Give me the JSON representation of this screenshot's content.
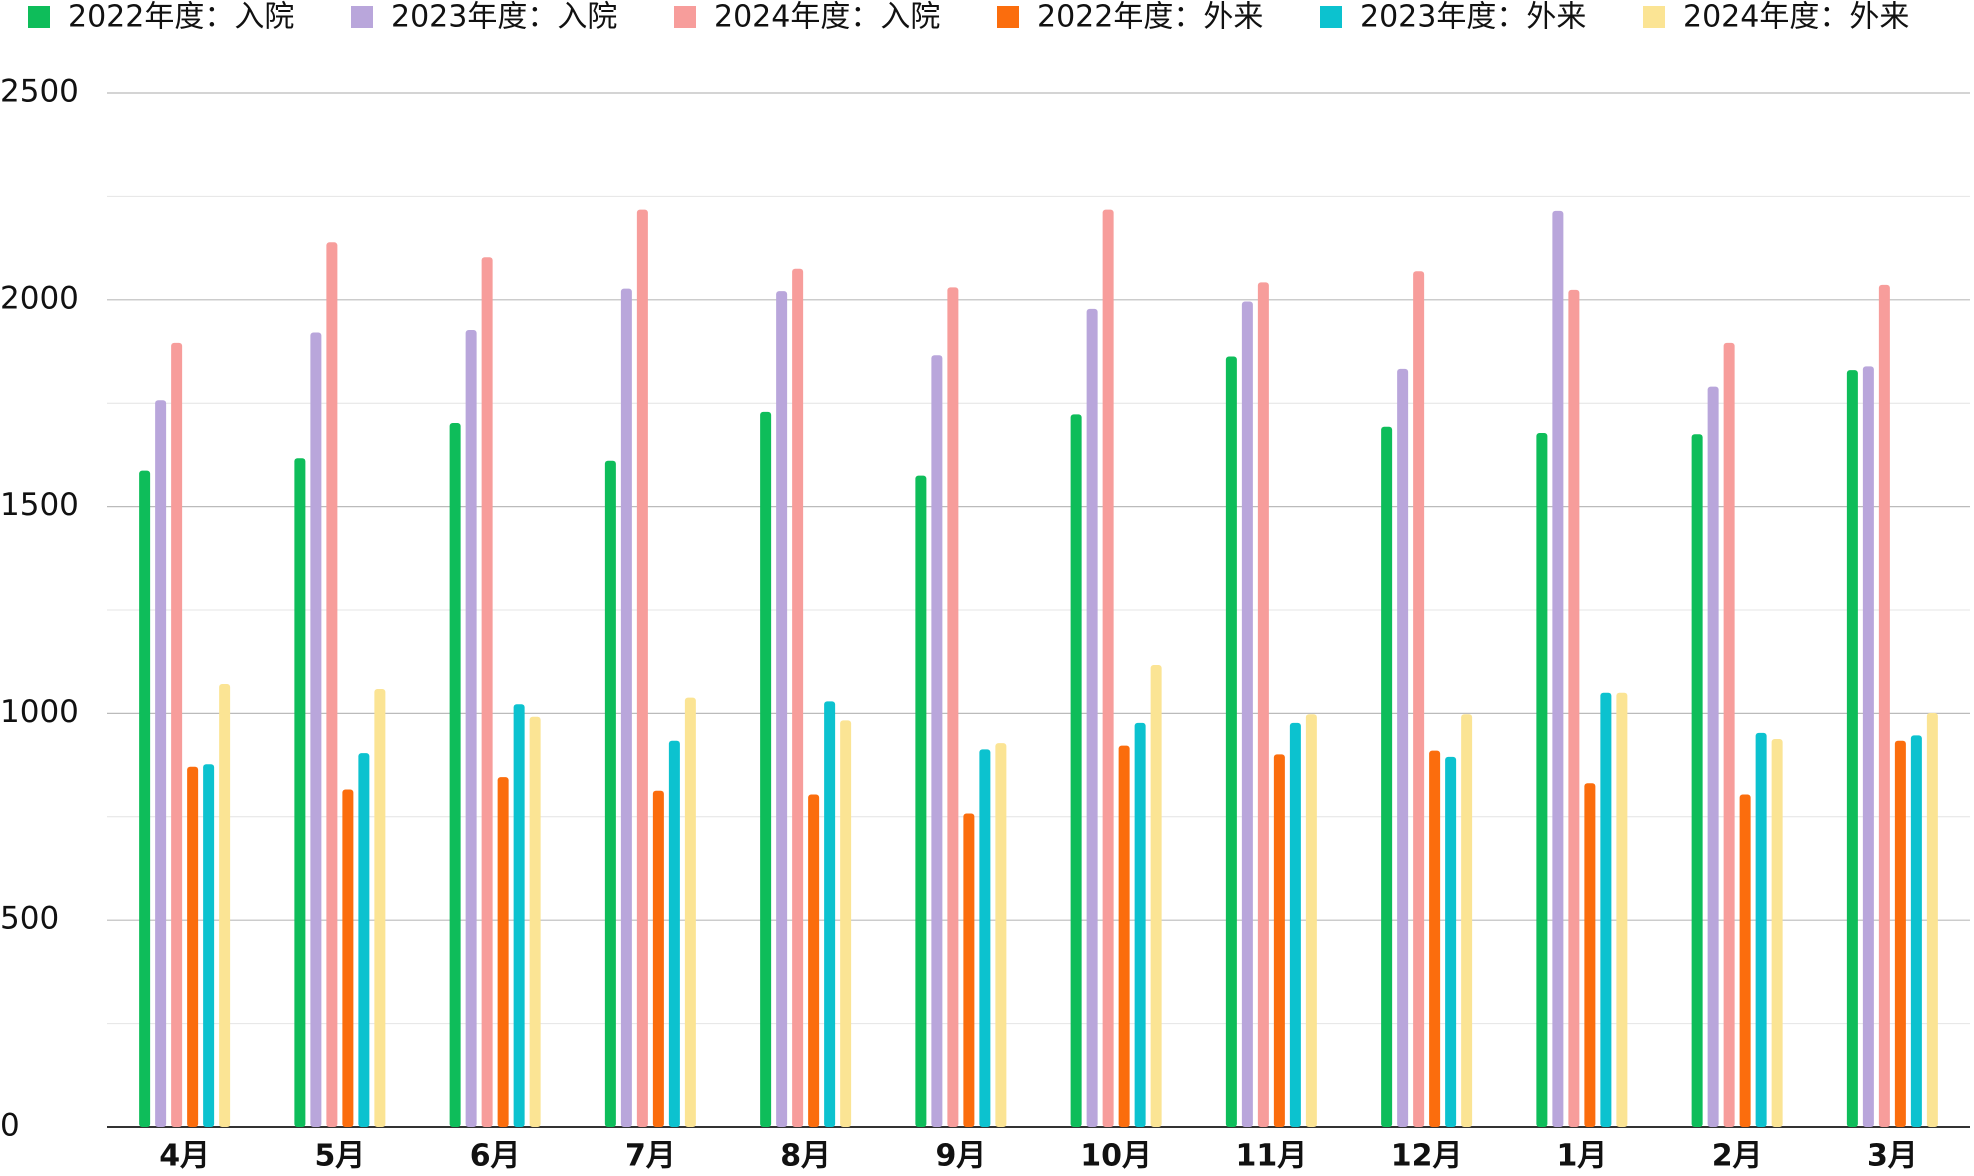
{
  "chart_data": {
    "type": "bar",
    "categories": [
      "4月",
      "5月",
      "6月",
      "7月",
      "8月",
      "9月",
      "10月",
      "11月",
      "12月",
      "1月",
      "2月",
      "3月"
    ],
    "series": [
      {
        "name": "2022年度：入院",
        "color": "#0ebd5a",
        "values": [
          1587,
          1617,
          1702,
          1611,
          1729,
          1575,
          1723,
          1863,
          1693,
          1678,
          1675,
          1830
        ]
      },
      {
        "name": "2023年度：入院",
        "color": "#b9a6db",
        "values": [
          1757,
          1921,
          1927,
          2027,
          2021,
          1866,
          1978,
          1996,
          1833,
          2215,
          1790,
          1839
        ]
      },
      {
        "name": "2024年度：入院",
        "color": "#f79d9b",
        "values": [
          1896,
          2139,
          2103,
          2218,
          2075,
          2030,
          2218,
          2042,
          2069,
          2024,
          1896,
          2036
        ]
      },
      {
        "name": "2022年度：外来",
        "color": "#fb6d0d",
        "values": [
          871,
          816,
          846,
          813,
          804,
          758,
          922,
          901,
          910,
          831,
          804,
          934
        ]
      },
      {
        "name": "2023年度：外来",
        "color": "#0cc2cf",
        "values": [
          877,
          904,
          1022,
          934,
          1029,
          913,
          977,
          977,
          895,
          1050,
          953,
          947
        ]
      },
      {
        "name": "2024年度：外来",
        "color": "#fbe494",
        "values": [
          1071,
          1059,
          992,
          1038,
          983,
          928,
          1117,
          998,
          998,
          1050,
          938,
          1001
        ]
      }
    ],
    "ylim": [
      0,
      2500
    ],
    "yticks": [
      0,
      500,
      1000,
      1500,
      2000,
      2500
    ],
    "grid": true,
    "legend": "top"
  }
}
